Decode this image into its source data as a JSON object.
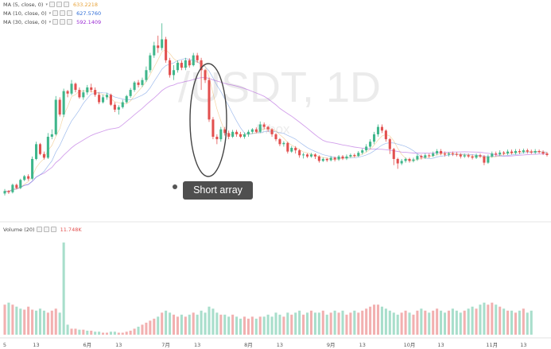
{
  "colors": {
    "up": "#3fb68b",
    "down": "#e2504f",
    "ma5": "#e8a33a",
    "ma10": "#2d6bd6",
    "ma30": "#9b2bd3",
    "volume_label": "#e2504f",
    "watermark": "#e9e9e9",
    "ellipse": "#444444"
  },
  "watermark": {
    "symbol": "/USDT, 1D",
    "brand": "Bibox"
  },
  "legend": {
    "ma5": {
      "label": "MA (5, close, 0)",
      "value": "633.2218"
    },
    "ma10": {
      "label": "MA (10, close, 0)",
      "value": "627.5760"
    },
    "ma30": {
      "label": "MA (30, close, 0)",
      "value": "592.1409"
    },
    "volume": {
      "label": "Volume (20)",
      "value": "11.748K"
    }
  },
  "annotation": {
    "text": "Short array"
  },
  "chart_data": {
    "type": "candlestick",
    "interval": "1D",
    "x_ticks": [
      {
        "label": "5",
        "pos": 0
      },
      {
        "label": "13",
        "pos": 8
      },
      {
        "label": "6月",
        "pos": 21
      },
      {
        "label": "13",
        "pos": 29
      },
      {
        "label": "7月",
        "pos": 41
      },
      {
        "label": "13",
        "pos": 49
      },
      {
        "label": "8月",
        "pos": 62
      },
      {
        "label": "13",
        "pos": 70
      },
      {
        "label": "9月",
        "pos": 83
      },
      {
        "label": "13",
        "pos": 91
      },
      {
        "label": "10月",
        "pos": 103
      },
      {
        "label": "13",
        "pos": 111
      },
      {
        "label": "11月",
        "pos": 124
      },
      {
        "label": "13",
        "pos": 132
      }
    ],
    "price_range": [
      40,
      820
    ],
    "volume_range": [
      0,
      100
    ],
    "candles": [
      [
        100,
        110,
        92,
        118
      ],
      [
        110,
        105,
        98,
        114
      ],
      [
        105,
        135,
        100,
        140
      ],
      [
        135,
        122,
        118,
        140
      ],
      [
        122,
        155,
        118,
        160
      ],
      [
        155,
        170,
        150,
        175
      ],
      [
        170,
        160,
        152,
        178
      ],
      [
        160,
        240,
        155,
        250
      ],
      [
        240,
        300,
        235,
        310
      ],
      [
        300,
        260,
        255,
        305
      ],
      [
        260,
        245,
        238,
        270
      ],
      [
        245,
        330,
        240,
        345
      ],
      [
        330,
        340,
        320,
        360
      ],
      [
        340,
        480,
        335,
        495
      ],
      [
        480,
        420,
        412,
        490
      ],
      [
        420,
        515,
        410,
        525
      ],
      [
        515,
        505,
        490,
        520
      ],
      [
        505,
        545,
        498,
        560
      ],
      [
        545,
        520,
        510,
        550
      ],
      [
        520,
        490,
        484,
        530
      ],
      [
        490,
        510,
        480,
        520
      ],
      [
        510,
        530,
        500,
        540
      ],
      [
        530,
        520,
        510,
        545
      ],
      [
        520,
        500,
        492,
        530
      ],
      [
        500,
        470,
        462,
        510
      ],
      [
        470,
        490,
        465,
        500
      ],
      [
        490,
        500,
        480,
        508
      ],
      [
        500,
        460,
        455,
        505
      ],
      [
        460,
        440,
        430,
        470
      ],
      [
        440,
        450,
        420,
        458
      ],
      [
        450,
        470,
        444,
        480
      ],
      [
        470,
        495,
        465,
        500
      ],
      [
        495,
        520,
        488,
        528
      ],
      [
        520,
        550,
        512,
        556
      ],
      [
        550,
        540,
        530,
        560
      ],
      [
        540,
        560,
        532,
        570
      ],
      [
        560,
        600,
        552,
        615
      ],
      [
        600,
        660,
        590,
        670
      ],
      [
        660,
        700,
        650,
        715
      ],
      [
        700,
        690,
        670,
        740
      ],
      [
        690,
        725,
        680,
        790
      ],
      [
        725,
        640,
        630,
        735
      ],
      [
        640,
        580,
        570,
        650
      ],
      [
        580,
        600,
        560,
        620
      ],
      [
        600,
        630,
        590,
        640
      ],
      [
        630,
        610,
        600,
        640
      ],
      [
        610,
        640,
        600,
        650
      ],
      [
        640,
        620,
        610,
        648
      ],
      [
        620,
        660,
        615,
        670
      ],
      [
        660,
        640,
        630,
        670
      ],
      [
        640,
        600,
        520,
        650
      ],
      [
        600,
        560,
        548,
        605
      ],
      [
        560,
        400,
        390,
        570
      ],
      [
        400,
        330,
        320,
        410
      ],
      [
        330,
        320,
        300,
        340
      ],
      [
        320,
        360,
        310,
        370
      ],
      [
        360,
        345,
        335,
        370
      ],
      [
        345,
        330,
        320,
        355
      ],
      [
        330,
        350,
        325,
        358
      ],
      [
        350,
        340,
        330,
        358
      ],
      [
        340,
        330,
        325,
        350
      ],
      [
        330,
        340,
        322,
        348
      ],
      [
        340,
        350,
        330,
        358
      ],
      [
        350,
        360,
        342,
        365
      ],
      [
        360,
        350,
        344,
        368
      ],
      [
        350,
        380,
        345,
        392
      ],
      [
        380,
        370,
        360,
        388
      ],
      [
        370,
        360,
        350,
        375
      ],
      [
        360,
        340,
        330,
        365
      ],
      [
        340,
        320,
        312,
        345
      ],
      [
        320,
        300,
        292,
        325
      ],
      [
        300,
        305,
        290,
        312
      ],
      [
        305,
        270,
        262,
        310
      ],
      [
        270,
        285,
        265,
        292
      ],
      [
        285,
        275,
        262,
        292
      ],
      [
        275,
        255,
        245,
        280
      ],
      [
        255,
        258,
        242,
        265
      ],
      [
        258,
        250,
        244,
        263
      ],
      [
        250,
        258,
        245,
        265
      ],
      [
        258,
        250,
        240,
        263
      ],
      [
        250,
        232,
        225,
        255
      ],
      [
        232,
        240,
        228,
        246
      ],
      [
        240,
        235,
        228,
        245
      ],
      [
        235,
        245,
        230,
        252
      ],
      [
        245,
        238,
        230,
        250
      ],
      [
        238,
        250,
        232,
        256
      ],
      [
        250,
        242,
        236,
        256
      ],
      [
        242,
        250,
        236,
        258
      ],
      [
        250,
        256,
        245,
        262
      ],
      [
        256,
        252,
        246,
        262
      ],
      [
        252,
        265,
        248,
        272
      ],
      [
        265,
        275,
        258,
        282
      ],
      [
        275,
        290,
        268,
        300
      ],
      [
        290,
        310,
        282,
        320
      ],
      [
        310,
        340,
        300,
        350
      ],
      [
        340,
        370,
        330,
        380
      ],
      [
        370,
        355,
        345,
        380
      ],
      [
        355,
        320,
        310,
        360
      ],
      [
        320,
        280,
        260,
        325
      ],
      [
        280,
        240,
        215,
        285
      ],
      [
        240,
        222,
        200,
        245
      ],
      [
        222,
        232,
        215,
        240
      ],
      [
        232,
        240,
        225,
        246
      ],
      [
        240,
        232,
        225,
        245
      ],
      [
        232,
        238,
        226,
        245
      ],
      [
        238,
        252,
        232,
        260
      ],
      [
        252,
        246,
        238,
        258
      ],
      [
        246,
        255,
        240,
        262
      ],
      [
        255,
        252,
        244,
        262
      ],
      [
        252,
        262,
        248,
        270
      ],
      [
        262,
        272,
        255,
        280
      ],
      [
        272,
        262,
        255,
        280
      ],
      [
        262,
        258,
        250,
        270
      ],
      [
        258,
        262,
        250,
        268
      ],
      [
        262,
        260,
        252,
        270
      ],
      [
        260,
        258,
        250,
        268
      ],
      [
        258,
        250,
        242,
        264
      ],
      [
        250,
        255,
        244,
        262
      ],
      [
        255,
        250,
        244,
        262
      ],
      [
        250,
        245,
        238,
        258
      ],
      [
        245,
        255,
        240,
        262
      ],
      [
        255,
        250,
        244,
        262
      ],
      [
        250,
        225,
        215,
        256
      ],
      [
        225,
        250,
        220,
        258
      ],
      [
        250,
        262,
        245,
        270
      ],
      [
        262,
        258,
        250,
        270
      ],
      [
        258,
        266,
        252,
        275
      ],
      [
        266,
        262,
        255,
        272
      ],
      [
        262,
        270,
        256,
        278
      ],
      [
        270,
        264,
        258,
        278
      ],
      [
        264,
        272,
        258,
        280
      ],
      [
        272,
        268,
        260,
        280
      ],
      [
        268,
        275,
        262,
        282
      ],
      [
        275,
        270,
        262,
        282
      ],
      [
        270,
        266,
        260,
        278
      ],
      [
        266,
        272,
        260,
        280
      ],
      [
        272,
        268,
        262,
        278
      ],
      [
        268,
        262,
        256,
        275
      ],
      [
        262,
        256,
        250,
        268
      ]
    ],
    "volumes": [
      [
        30,
        0
      ],
      [
        32,
        1
      ],
      [
        30,
        0
      ],
      [
        28,
        1
      ],
      [
        26,
        1
      ],
      [
        25,
        0
      ],
      [
        28,
        0
      ],
      [
        25,
        0
      ],
      [
        24,
        1
      ],
      [
        26,
        1
      ],
      [
        24,
        1
      ],
      [
        22,
        0
      ],
      [
        24,
        0
      ],
      [
        26,
        0
      ],
      [
        22,
        1
      ],
      [
        92,
        1
      ],
      [
        10,
        1
      ],
      [
        6,
        0
      ],
      [
        6,
        0
      ],
      [
        5,
        1
      ],
      [
        5,
        0
      ],
      [
        4,
        1
      ],
      [
        4,
        0
      ],
      [
        3,
        1
      ],
      [
        3,
        1
      ],
      [
        2,
        0
      ],
      [
        2,
        0
      ],
      [
        3,
        1
      ],
      [
        3,
        1
      ],
      [
        2,
        0
      ],
      [
        2,
        0
      ],
      [
        3,
        0
      ],
      [
        4,
        0
      ],
      [
        6,
        0
      ],
      [
        8,
        1
      ],
      [
        10,
        0
      ],
      [
        12,
        0
      ],
      [
        14,
        0
      ],
      [
        16,
        0
      ],
      [
        18,
        1
      ],
      [
        22,
        0
      ],
      [
        24,
        1
      ],
      [
        22,
        1
      ],
      [
        20,
        0
      ],
      [
        18,
        0
      ],
      [
        20,
        1
      ],
      [
        18,
        0
      ],
      [
        20,
        1
      ],
      [
        22,
        0
      ],
      [
        20,
        1
      ],
      [
        24,
        1
      ],
      [
        22,
        1
      ],
      [
        28,
        1
      ],
      [
        26,
        1
      ],
      [
        22,
        1
      ],
      [
        20,
        0
      ],
      [
        20,
        1
      ],
      [
        18,
        1
      ],
      [
        20,
        0
      ],
      [
        18,
        1
      ],
      [
        16,
        1
      ],
      [
        18,
        0
      ],
      [
        16,
        0
      ],
      [
        18,
        0
      ],
      [
        16,
        1
      ],
      [
        18,
        0
      ],
      [
        18,
        1
      ],
      [
        20,
        1
      ],
      [
        18,
        1
      ],
      [
        22,
        1
      ],
      [
        20,
        1
      ],
      [
        18,
        0
      ],
      [
        22,
        1
      ],
      [
        20,
        0
      ],
      [
        22,
        1
      ],
      [
        24,
        1
      ],
      [
        20,
        0
      ],
      [
        22,
        1
      ],
      [
        24,
        0
      ],
      [
        22,
        1
      ],
      [
        22,
        1
      ],
      [
        24,
        0
      ],
      [
        20,
        1
      ],
      [
        22,
        0
      ],
      [
        24,
        1
      ],
      [
        22,
        0
      ],
      [
        24,
        1
      ],
      [
        20,
        0
      ],
      [
        22,
        0
      ],
      [
        24,
        1
      ],
      [
        22,
        0
      ],
      [
        24,
        0
      ],
      [
        26,
        0
      ],
      [
        28,
        0
      ],
      [
        30,
        0
      ],
      [
        30,
        0
      ],
      [
        28,
        1
      ],
      [
        26,
        1
      ],
      [
        24,
        1
      ],
      [
        22,
        1
      ],
      [
        20,
        1
      ],
      [
        22,
        0
      ],
      [
        24,
        0
      ],
      [
        22,
        1
      ],
      [
        20,
        0
      ],
      [
        24,
        0
      ],
      [
        26,
        1
      ],
      [
        24,
        0
      ],
      [
        22,
        1
      ],
      [
        24,
        0
      ],
      [
        26,
        0
      ],
      [
        24,
        1
      ],
      [
        22,
        1
      ],
      [
        24,
        0
      ],
      [
        26,
        1
      ],
      [
        24,
        1
      ],
      [
        22,
        1
      ],
      [
        24,
        0
      ],
      [
        26,
        1
      ],
      [
        28,
        1
      ],
      [
        26,
        0
      ],
      [
        30,
        1
      ],
      [
        32,
        1
      ],
      [
        30,
        0
      ],
      [
        32,
        0
      ],
      [
        30,
        1
      ],
      [
        28,
        0
      ],
      [
        26,
        1
      ],
      [
        24,
        0
      ],
      [
        24,
        1
      ],
      [
        22,
        0
      ],
      [
        24,
        1
      ],
      [
        26,
        0
      ],
      [
        22,
        1
      ],
      [
        24,
        1
      ]
    ]
  }
}
